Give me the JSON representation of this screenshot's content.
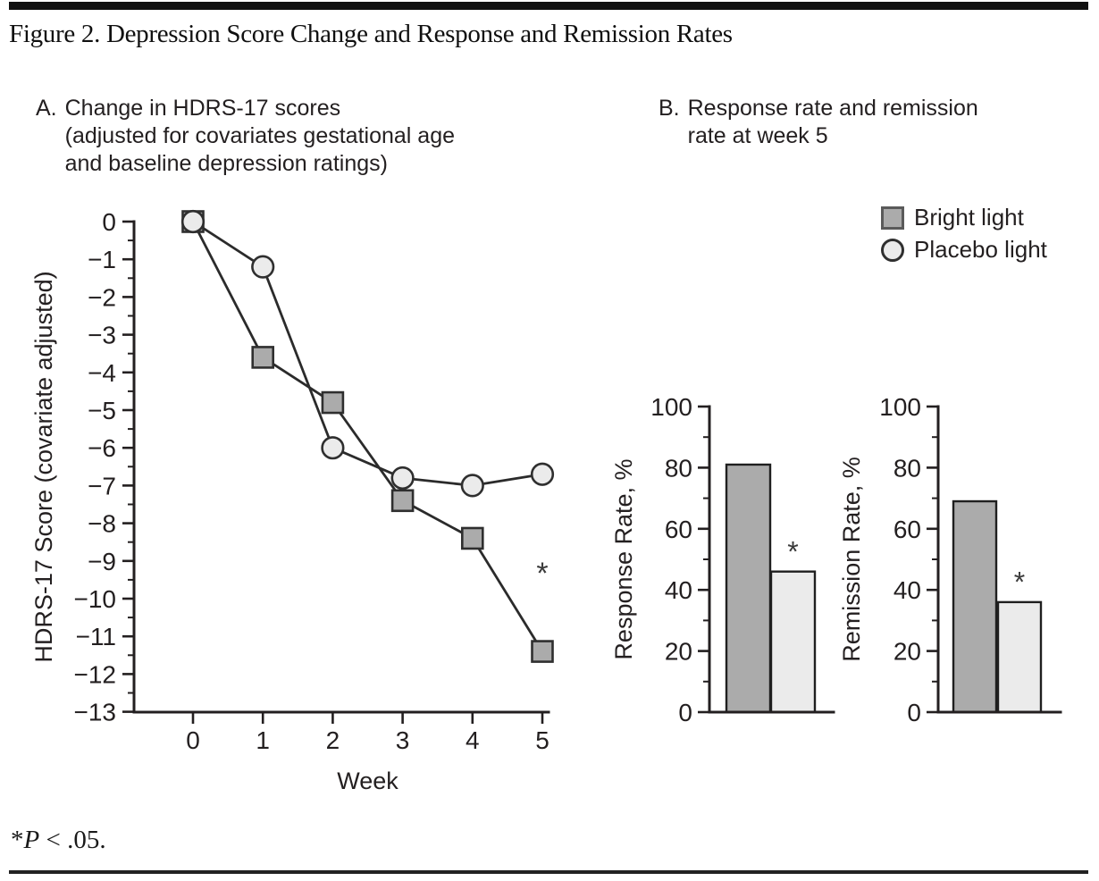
{
  "figure": {
    "title": "Figure 2. Depression Score Change and Response and Remission Rates",
    "footnote": {
      "star": "*",
      "p": "P",
      "rest": " < .05."
    }
  },
  "panels": {
    "a": {
      "prefix": "A.",
      "lines": [
        "Change in HDRS-17 scores",
        "(adjusted for covariates gestational age",
        "and baseline depression  ratings)"
      ]
    },
    "b": {
      "prefix": "B.",
      "lines": [
        "Response rate and remission",
        "rate at week 5"
      ]
    }
  },
  "legend": {
    "items": [
      {
        "label": "Bright light",
        "marker": "square"
      },
      {
        "label": "Placebo light",
        "marker": "circle"
      }
    ]
  },
  "colors": {
    "bright": "#ababab",
    "placebo": "#ebebeb",
    "ink": "#231f20",
    "line": "#2b2b2b"
  },
  "chart_data": [
    {
      "id": "hdrs-line",
      "type": "line",
      "title": "A. Change in HDRS-17 scores (adjusted for covariates gestational age and baseline depression ratings)",
      "xlabel": "Week",
      "ylabel": "HDRS-17 Score (covariate adjusted)",
      "x": [
        0,
        1,
        2,
        3,
        4,
        5
      ],
      "xtick_labels": [
        "0",
        "1",
        "2",
        "3",
        "4",
        "5"
      ],
      "ylim": [
        -13,
        0
      ],
      "yticks": [
        0,
        -1,
        -2,
        -3,
        -4,
        -5,
        -6,
        -7,
        -8,
        -9,
        -10,
        -11,
        -12,
        -13
      ],
      "ytick_labels": [
        "0",
        "−1",
        "−2",
        "−3",
        "−4",
        "−5",
        "−6",
        "−7",
        "−8",
        "−9",
        "−10",
        "−11",
        "−12",
        "−13"
      ],
      "minor_ticks_every": 0.5,
      "grid": false,
      "legend_position": "upper right of panel B area",
      "series": [
        {
          "name": "Bright light",
          "marker": "square",
          "values": [
            0,
            -3.6,
            -4.8,
            -7.4,
            -8.4,
            -11.4
          ]
        },
        {
          "name": "Placebo light",
          "marker": "circle",
          "values": [
            0,
            -1.2,
            -6.0,
            -6.8,
            -7.0,
            -6.7
          ]
        }
      ],
      "annotations": [
        {
          "text": "*",
          "x": 5,
          "y": -9.2
        }
      ]
    },
    {
      "id": "response-bar",
      "type": "bar",
      "ylabel": "Response Rate, %",
      "categories": [
        "Bright light",
        "Placebo light"
      ],
      "values": [
        81,
        46
      ],
      "ylim": [
        0,
        100
      ],
      "yticks": [
        0,
        20,
        40,
        60,
        80,
        100
      ],
      "ytick_labels": [
        "0",
        "20",
        "40",
        "60",
        "80",
        "100"
      ],
      "minor_ticks_every": 10,
      "grid": false,
      "annotations": [
        {
          "text": "*",
          "category": "Placebo light",
          "y": 54
        }
      ]
    },
    {
      "id": "remission-bar",
      "type": "bar",
      "ylabel": "Remission Rate, %",
      "categories": [
        "Bright light",
        "Placebo light"
      ],
      "values": [
        69,
        36
      ],
      "ylim": [
        0,
        100
      ],
      "yticks": [
        0,
        20,
        40,
        60,
        80,
        100
      ],
      "ytick_labels": [
        "0",
        "20",
        "40",
        "60",
        "80",
        "100"
      ],
      "minor_ticks_every": 10,
      "grid": false,
      "annotations": [
        {
          "text": "*",
          "category": "Placebo light",
          "y": 44
        }
      ]
    }
  ]
}
